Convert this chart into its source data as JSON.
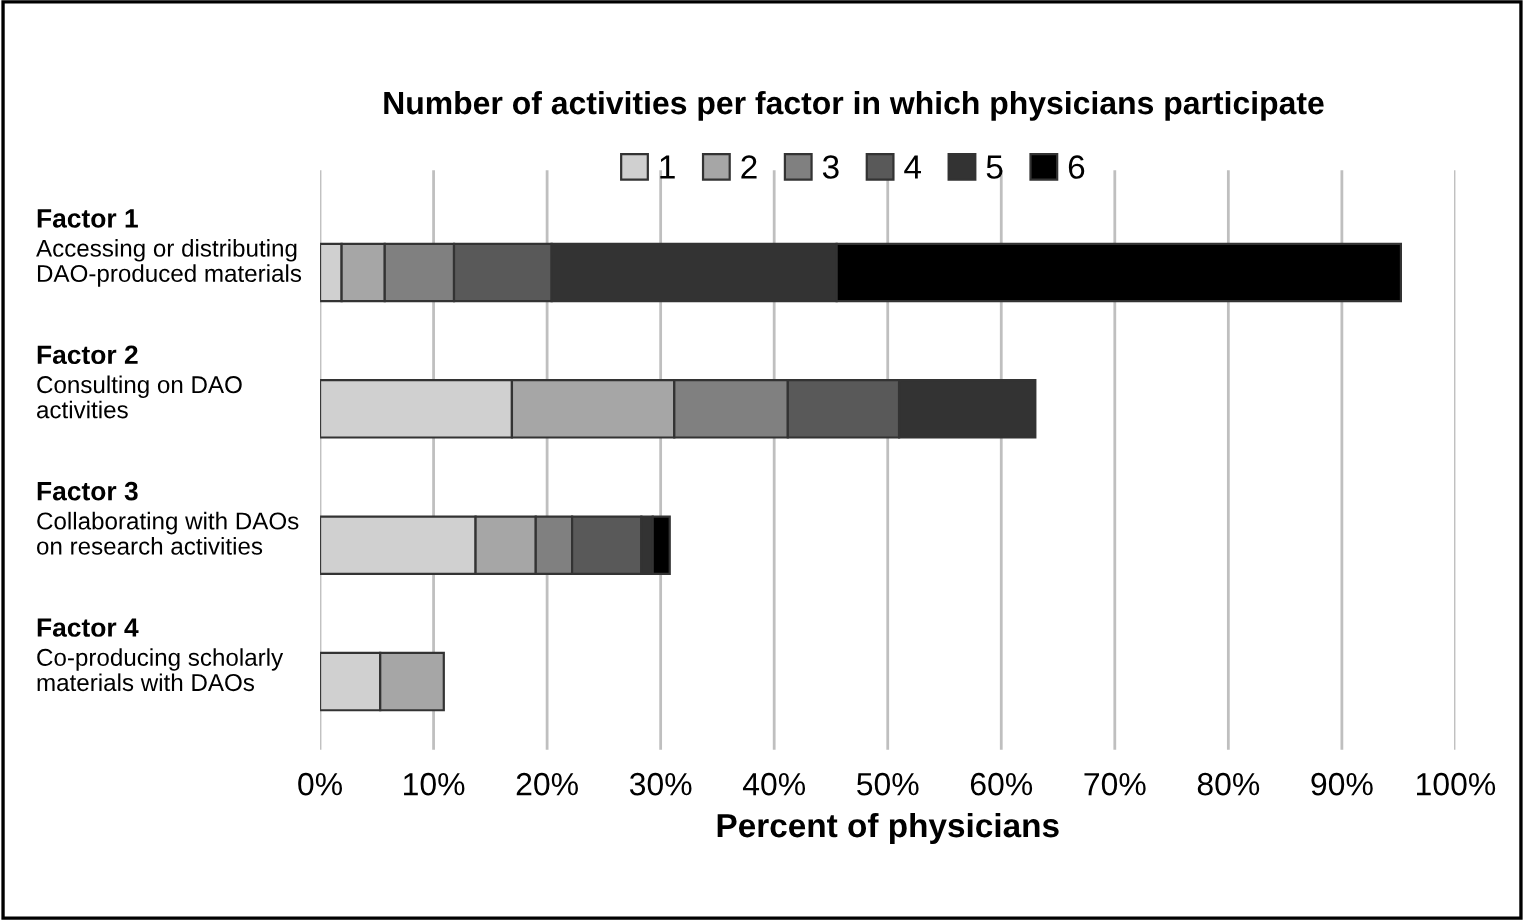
{
  "chart_data": {
    "type": "bar",
    "orientation": "horizontal",
    "stacked": true,
    "title": "Number of activities per factor in which physicians participate",
    "xlabel": "Percent of physicians",
    "categories": [
      "Factor 1\nAccessing or distributing\nDAO-produced materials",
      "Factor 2\nConsulting on DAO\nactivities",
      "Factor 3\nCollaborating with DAOs\non research activities",
      "Factor 4\nCo-producing scholarly\nmaterials with DAOs"
    ],
    "series": [
      {
        "name": "1",
        "color": "#d0d0d0",
        "values": [
          1.9,
          16.9,
          13.7,
          5.3
        ]
      },
      {
        "name": "2",
        "color": "#a6a6a6",
        "values": [
          3.8,
          14.3,
          5.3,
          5.6
        ]
      },
      {
        "name": "3",
        "color": "#808080",
        "values": [
          6.1,
          10.0,
          3.2,
          null
        ]
      },
      {
        "name": "4",
        "color": "#595959",
        "values": [
          8.6,
          9.8,
          6.1,
          null
        ]
      },
      {
        "name": "5",
        "color": "#333333",
        "values": [
          25.1,
          12.0,
          1.0,
          null
        ]
      },
      {
        "name": "6",
        "color": "#000000",
        "values": [
          49.7,
          null,
          1.5,
          null
        ]
      }
    ],
    "xlim": [
      0,
      100
    ],
    "xticks": [
      {
        "value": 0,
        "label": "0%"
      },
      {
        "value": 10,
        "label": "10%"
      },
      {
        "value": 20,
        "label": "20%"
      },
      {
        "value": 30,
        "label": "30%"
      },
      {
        "value": 40,
        "label": "40%"
      },
      {
        "value": 50,
        "label": "50%"
      },
      {
        "value": 60,
        "label": "60%"
      },
      {
        "value": 70,
        "label": "70%"
      },
      {
        "value": 80,
        "label": "80%"
      },
      {
        "value": 90,
        "label": "90%"
      },
      {
        "value": 100,
        "label": "100%"
      }
    ],
    "grid": "x",
    "legend": "top"
  }
}
